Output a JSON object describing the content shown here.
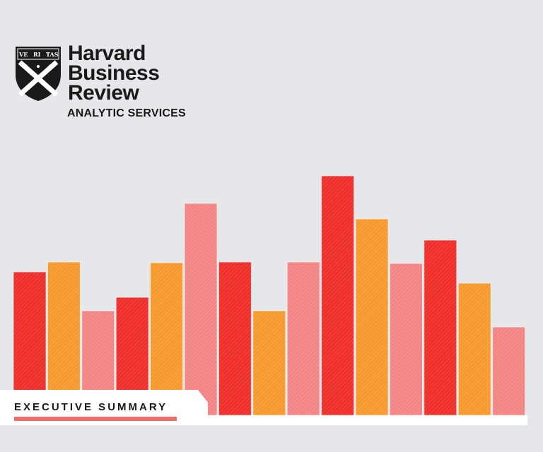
{
  "brand": {
    "line1": "Harvard",
    "line2": "Business",
    "line3": "Review",
    "subtitle": "ANALYTIC SERVICES",
    "shield_text": [
      "VE",
      "RI",
      "TAS"
    ]
  },
  "summary": {
    "label": "EXECUTIVE SUMMARY"
  },
  "colors": {
    "background": "#e5e7ea",
    "red": "#ee2f2b",
    "orange": "#f79a2e",
    "pink": "#f38585",
    "text": "#1a1a1a"
  },
  "chart_data": {
    "type": "bar",
    "values": [
      203,
      217,
      148,
      167,
      216,
      300,
      217,
      148,
      217,
      339,
      278,
      215,
      248,
      187,
      125
    ],
    "colors": [
      "red",
      "orange",
      "pink",
      "red",
      "orange",
      "pink",
      "red",
      "orange",
      "pink",
      "red",
      "orange",
      "pink",
      "red",
      "orange",
      "pink"
    ],
    "grid": false
  }
}
